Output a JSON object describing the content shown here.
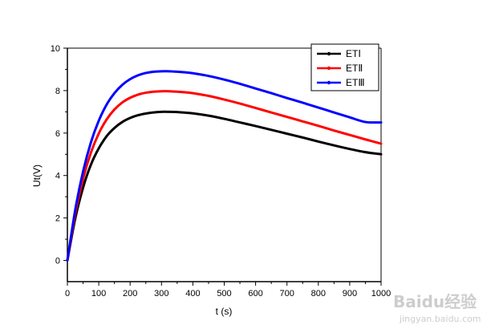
{
  "chart_data": {
    "type": "line",
    "xlabel": "t (s)",
    "ylabel": "Ut(V)",
    "xlim": [
      0,
      1000
    ],
    "ylim": [
      -1,
      10
    ],
    "x_ticks": [
      0,
      100,
      200,
      300,
      400,
      500,
      600,
      700,
      800,
      900,
      1000
    ],
    "y_ticks": [
      0,
      2,
      4,
      6,
      8,
      10
    ],
    "grid": false,
    "legend_position": "top-right",
    "x": [
      0,
      25,
      50,
      75,
      100,
      125,
      150,
      175,
      200,
      225,
      250,
      275,
      300,
      325,
      350,
      375,
      400,
      450,
      500,
      550,
      600,
      650,
      700,
      750,
      800,
      850,
      900,
      950,
      1000
    ],
    "series": [
      {
        "name": "ETⅠ",
        "color": "#000000",
        "values": [
          0,
          1.97,
          3.43,
          4.51,
          5.28,
          5.85,
          6.24,
          6.52,
          6.71,
          6.84,
          6.92,
          6.97,
          7.0,
          7.0,
          6.99,
          6.96,
          6.93,
          6.82,
          6.67,
          6.5,
          6.33,
          6.15,
          5.97,
          5.79,
          5.6,
          5.42,
          5.25,
          5.1,
          5.0
        ]
      },
      {
        "name": "ETⅡ",
        "color": "#ff0000",
        "values": [
          0,
          2.2,
          3.85,
          5.08,
          5.98,
          6.64,
          7.11,
          7.44,
          7.66,
          7.81,
          7.9,
          7.95,
          7.97,
          7.97,
          7.95,
          7.92,
          7.88,
          7.75,
          7.58,
          7.39,
          7.18,
          6.97,
          6.76,
          6.55,
          6.34,
          6.12,
          5.91,
          5.7,
          5.5
        ]
      },
      {
        "name": "ETⅢ",
        "color": "#0000ff",
        "values": [
          0,
          2.38,
          4.19,
          5.56,
          6.58,
          7.34,
          7.88,
          8.27,
          8.54,
          8.72,
          8.83,
          8.89,
          8.91,
          8.91,
          8.89,
          8.86,
          8.82,
          8.69,
          8.52,
          8.32,
          8.1,
          7.88,
          7.65,
          7.43,
          7.2,
          6.97,
          6.74,
          6.52,
          6.5
        ]
      }
    ]
  },
  "watermark": {
    "logo": "Baidu经验",
    "url": "jingyan.baidu.com"
  }
}
